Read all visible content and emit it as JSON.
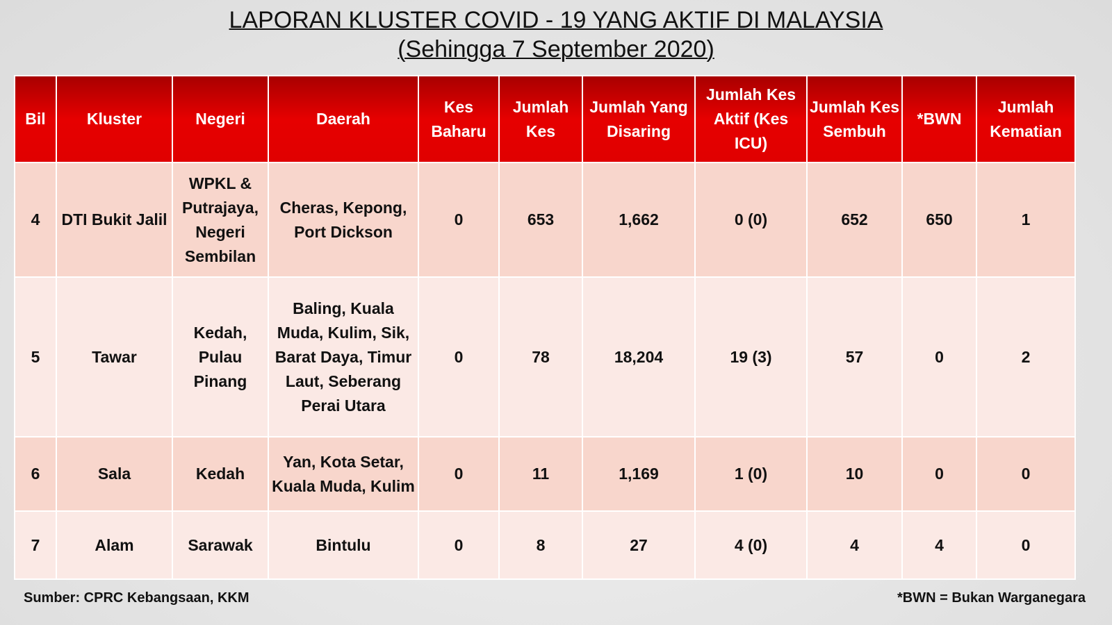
{
  "header": {
    "title": "LAPORAN KLUSTER COVID - 19 YANG AKTIF DI MALAYSIA",
    "subtitle": "(Sehingga 7 September 2020)"
  },
  "table": {
    "columns": [
      "Bil",
      "Kluster",
      "Negeri",
      "Daerah",
      "Kes Baharu",
      "Jumlah Kes",
      "Jumlah Yang Disaring",
      "Jumlah Kes Aktif (Kes ICU)",
      "Jumlah Kes Sembuh",
      "*BWN",
      "Jumlah Kematian"
    ],
    "rows": [
      [
        "4",
        "DTI Bukit Jalil",
        "WPKL & Putrajaya, Negeri Sembilan",
        "Cheras, Kepong, Port Dickson",
        "0",
        "653",
        "1,662",
        "0 (0)",
        "652",
        "650",
        "1"
      ],
      [
        "5",
        "Tawar",
        "Kedah, Pulau Pinang",
        "Baling, Kuala Muda, Kulim, Sik, Barat Daya, Timur Laut, Seberang Perai Utara",
        "0",
        "78",
        "18,204",
        "19 (3)",
        "57",
        "0",
        "2"
      ],
      [
        "6",
        "Sala",
        "Kedah",
        "Yan, Kota Setar, Kuala Muda, Kulim",
        "0",
        "11",
        "1,169",
        "1 (0)",
        "10",
        "0",
        "0"
      ],
      [
        "7",
        "Alam",
        "Sarawak",
        "Bintulu",
        "0",
        "8",
        "27",
        "4 (0)",
        "4",
        "4",
        "0"
      ]
    ]
  },
  "footer": {
    "source": "Sumber: CPRC Kebangsaan, KKM",
    "note": "*BWN = Bukan Warganegara"
  }
}
